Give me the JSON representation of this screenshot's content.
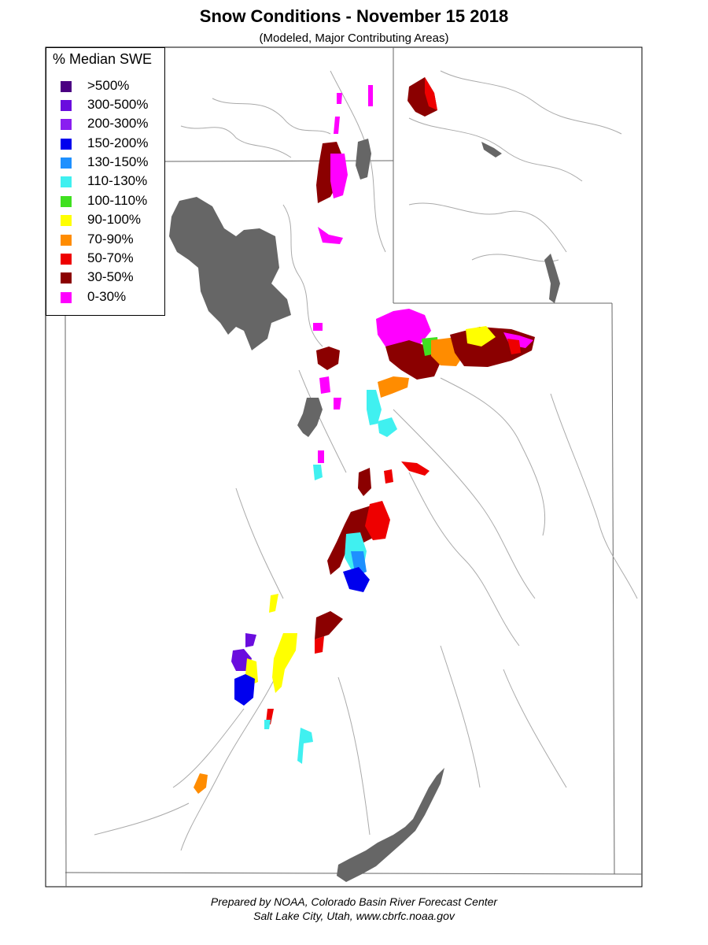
{
  "title": "Snow Conditions - November 15 2018",
  "subtitle": "(Modeled, Major Contributing Areas)",
  "legend": {
    "title": "% Median SWE",
    "items": [
      {
        "label": ">500%",
        "color": "#4b0082"
      },
      {
        "label": "300-500%",
        "color": "#6a0dde"
      },
      {
        "label": "200-300%",
        "color": "#8a1ef0"
      },
      {
        "label": "150-200%",
        "color": "#0000ee"
      },
      {
        "label": "130-150%",
        "color": "#1e90ff"
      },
      {
        "label": "110-130%",
        "color": "#40f0f0"
      },
      {
        "label": "100-110%",
        "color": "#40e020"
      },
      {
        "label": "90-100%",
        "color": "#ffff00"
      },
      {
        "label": "70-90%",
        "color": "#ff8c00"
      },
      {
        "label": "50-70%",
        "color": "#ee0000"
      },
      {
        "label": "30-50%",
        "color": "#8b0000"
      },
      {
        "label": "0-30%",
        "color": "#ff00ff"
      }
    ]
  },
  "colors": {
    "lake": "#666666",
    "border": "#555555",
    "river": "#aaaaaa"
  },
  "footer": {
    "line1": "Prepared by NOAA, Colorado Basin River Forecast Center",
    "line2": "Salt Lake City, Utah, www.cbrfc.noaa.gov"
  }
}
